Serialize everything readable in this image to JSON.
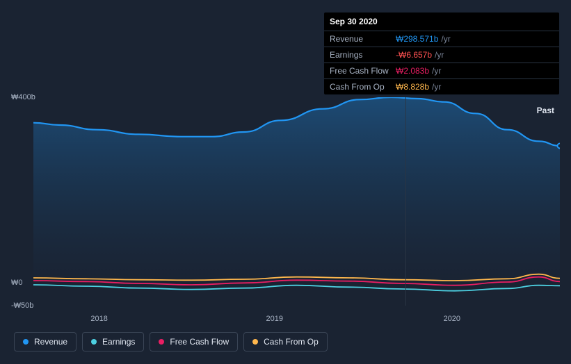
{
  "tooltip": {
    "date": "Sep 30 2020",
    "rows": [
      {
        "label": "Revenue",
        "value": "₩298.571b",
        "unit": "/yr",
        "color": "#2196f3"
      },
      {
        "label": "Earnings",
        "value": "-₩6.657b",
        "unit": "/yr",
        "color": "#ff5252"
      },
      {
        "label": "Free Cash Flow",
        "value": "₩2.083b",
        "unit": "/yr",
        "color": "#e91e63"
      },
      {
        "label": "Cash From Op",
        "value": "₩8.828b",
        "unit": "/yr",
        "color": "#ffb74d"
      }
    ]
  },
  "chart": {
    "type": "area-line",
    "background_color": "#1a2332",
    "plot_background": "linear-gradient(180deg, #1e3a5f 0%, #16253a 100%)",
    "ylim": [
      -50,
      400
    ],
    "ytick_labels": [
      {
        "label": "₩400b",
        "value": 400
      },
      {
        "label": "₩0",
        "value": 0
      },
      {
        "label": "-₩50b",
        "value": -50
      }
    ],
    "x_categories": [
      "2018",
      "2019",
      "2020"
    ],
    "past_label": "Past",
    "vline_x": 0.707,
    "series": {
      "revenue": {
        "name": "Revenue",
        "color": "#2196f3",
        "fill_top": "rgba(33,150,243,0.35)",
        "fill_bottom": "rgba(22,37,58,0.15)",
        "points": [
          [
            0.0,
            345
          ],
          [
            0.05,
            340
          ],
          [
            0.12,
            330
          ],
          [
            0.2,
            320
          ],
          [
            0.28,
            315
          ],
          [
            0.34,
            315
          ],
          [
            0.4,
            325
          ],
          [
            0.47,
            350
          ],
          [
            0.55,
            375
          ],
          [
            0.62,
            395
          ],
          [
            0.68,
            400
          ],
          [
            0.73,
            397
          ],
          [
            0.78,
            390
          ],
          [
            0.84,
            365
          ],
          [
            0.9,
            330
          ],
          [
            0.96,
            305
          ],
          [
            1.0,
            295
          ]
        ]
      },
      "cash_from_op": {
        "name": "Cash From Op",
        "color": "#ffb74d",
        "points": [
          [
            0.0,
            10
          ],
          [
            0.1,
            8
          ],
          [
            0.2,
            6
          ],
          [
            0.3,
            5
          ],
          [
            0.4,
            7
          ],
          [
            0.5,
            12
          ],
          [
            0.6,
            10
          ],
          [
            0.7,
            6
          ],
          [
            0.8,
            4
          ],
          [
            0.9,
            8
          ],
          [
            0.96,
            18
          ],
          [
            1.0,
            9
          ]
        ]
      },
      "free_cash_flow": {
        "name": "Free Cash Flow",
        "color": "#e91e63",
        "points": [
          [
            0.0,
            4
          ],
          [
            0.1,
            2
          ],
          [
            0.2,
            -2
          ],
          [
            0.3,
            -5
          ],
          [
            0.4,
            -1
          ],
          [
            0.5,
            5
          ],
          [
            0.6,
            3
          ],
          [
            0.7,
            -2
          ],
          [
            0.8,
            -6
          ],
          [
            0.9,
            1
          ],
          [
            0.96,
            12
          ],
          [
            1.0,
            2
          ]
        ]
      },
      "earnings": {
        "name": "Earnings",
        "color": "#4dd0e1",
        "points": [
          [
            0.0,
            -5
          ],
          [
            0.1,
            -8
          ],
          [
            0.2,
            -12
          ],
          [
            0.3,
            -15
          ],
          [
            0.4,
            -12
          ],
          [
            0.5,
            -6
          ],
          [
            0.6,
            -10
          ],
          [
            0.7,
            -14
          ],
          [
            0.8,
            -18
          ],
          [
            0.9,
            -13
          ],
          [
            0.96,
            -6
          ],
          [
            1.0,
            -7
          ]
        ]
      }
    },
    "legend_order": [
      "revenue",
      "earnings",
      "free_cash_flow",
      "cash_from_op"
    ]
  }
}
